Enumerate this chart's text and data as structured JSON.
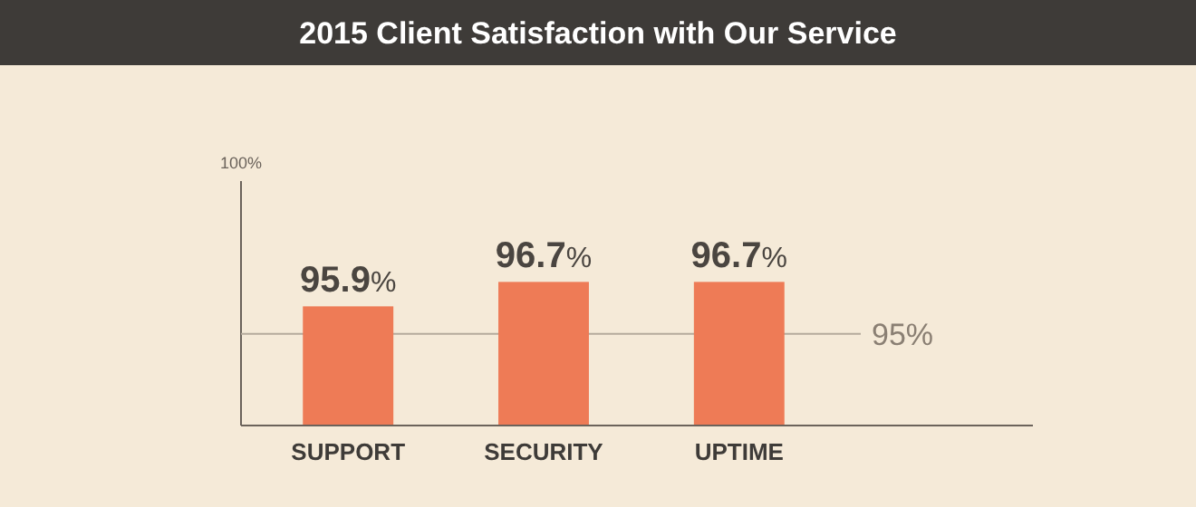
{
  "chart_data": {
    "type": "bar",
    "title": "2015 Client Satisfaction with Our Service",
    "categories": [
      "SUPPORT",
      "SECURITY",
      "UPTIME"
    ],
    "values": [
      95.9,
      96.7,
      96.7
    ],
    "color": "#ee7b56",
    "value_labels": [
      "95.9%",
      "96.7%",
      "96.7%"
    ],
    "ylim": [
      92,
      100
    ],
    "annotations": [
      "100%"
    ],
    "ref_lines": [
      {
        "axis": "y",
        "value": 95,
        "label": "95%",
        "color": "#b5aa9c"
      }
    ],
    "orientation": "vertical"
  }
}
